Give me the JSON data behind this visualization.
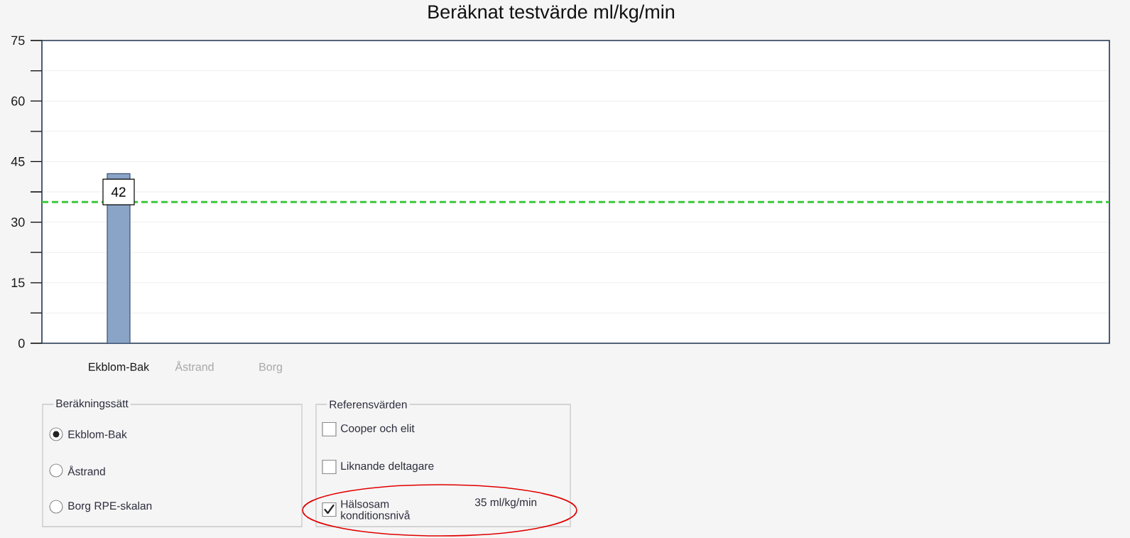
{
  "chart_data": {
    "type": "bar",
    "title": "Beräknat testvärde ml/kg/min",
    "categories": [
      "Ekblom-Bak",
      "Åstrand",
      "Borg"
    ],
    "values": [
      42,
      null,
      null
    ],
    "value_labels": [
      "42",
      null,
      null
    ],
    "color": "#8aa4c8",
    "ylim": [
      0,
      75
    ],
    "yticks": [
      0,
      {
        "value": 7.5,
        "label": null
      },
      15,
      {
        "value": 22.5,
        "label": null
      },
      30,
      {
        "value": 37.5,
        "label": null
      },
      45,
      {
        "value": 52.5,
        "label": null
      },
      60,
      {
        "value": 67.5,
        "label": null
      },
      75
    ],
    "grid": "y",
    "ref_lines": [
      {
        "axis": "y",
        "value": 35,
        "color": "#3cc83c",
        "line_style": "dashed"
      }
    ],
    "annotations": [
      "Beräkningssätt",
      "Ekblom-Bak",
      "Åstrand",
      "Borg RPE-skalan",
      "Referensvärden",
      "Cooper och elit",
      "Liknande deltagare",
      "Hälsosam konditionsnivå",
      "35 ml/kg/min"
    ]
  }
}
